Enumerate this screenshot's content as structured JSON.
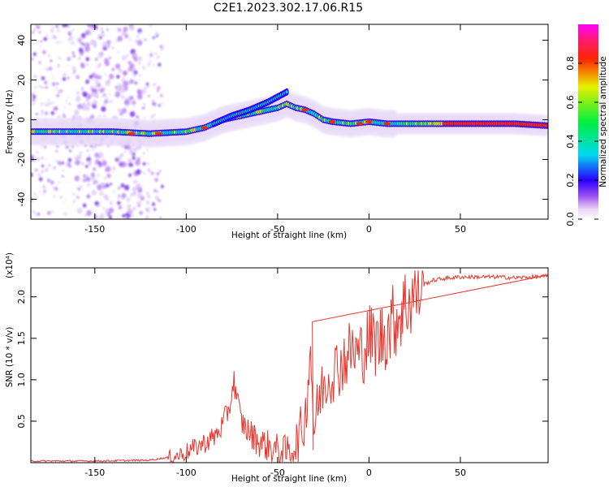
{
  "title": "C2E1.2023.302.17.06.R15",
  "chart_data": [
    {
      "type": "heatmap",
      "xlabel": "Height of straight line (km)",
      "ylabel": "Frequency (Hz)",
      "xlim": [
        -185,
        98
      ],
      "ylim": [
        -50,
        48
      ],
      "xticks": [
        -150,
        -100,
        -50,
        0,
        50
      ],
      "yticks": [
        -40,
        -20,
        0,
        20,
        40
      ],
      "colorbar": {
        "label": "Normalized spectral amplitude",
        "range": [
          0,
          1
        ],
        "ticks": [
          0.0,
          0.2,
          0.4,
          0.6,
          0.8
        ]
      },
      "ridge": {
        "description": "strong narrow-band signal",
        "x": [
          -185,
          -160,
          -140,
          -120,
          -100,
          -90,
          -80,
          -70,
          -60,
          -50,
          -45,
          -40,
          -35,
          -30,
          -25,
          -20,
          -10,
          0,
          10,
          20,
          40,
          60,
          80,
          98
        ],
        "freq_hz": [
          -6,
          -6,
          -6,
          -7,
          -6,
          -4,
          0,
          2,
          4,
          6,
          8,
          6,
          5,
          3,
          0,
          -1,
          -2,
          -1,
          -2,
          -2,
          -2,
          -2,
          -2,
          -3
        ],
        "upper_branch_x": [
          -85,
          -75,
          -65,
          -55,
          -45
        ],
        "upper_branch_freq_hz": [
          -2,
          2,
          5,
          9,
          14
        ]
      }
    },
    {
      "type": "line",
      "xlabel": "Height of straight line (km)",
      "ylabel": "SNR (10 * v/v)",
      "y_multiplier": "(x10⁴)",
      "xlim": [
        -185,
        98
      ],
      "ylim": [
        0,
        2.35
      ],
      "xticks": [
        -150,
        -100,
        -50,
        0,
        50
      ],
      "yticks": [
        0.5,
        1.0,
        1.5,
        2.0
      ],
      "series": [
        {
          "name": "SNR",
          "color": "#e8372e",
          "x": [
            -185,
            -150,
            -120,
            -105,
            -95,
            -85,
            -80,
            -76,
            -74,
            -70,
            -65,
            -60,
            -55,
            -50,
            -45,
            -40,
            -35,
            -32,
            -30,
            -28,
            -25,
            -20,
            -15,
            -10,
            -5,
            0,
            5,
            10,
            15,
            20,
            25,
            30,
            35,
            40,
            50,
            60,
            70,
            80,
            90,
            98
          ],
          "y": [
            0.02,
            0.02,
            0.03,
            0.08,
            0.18,
            0.3,
            0.45,
            0.7,
            1.0,
            0.5,
            0.35,
            0.25,
            0.2,
            0.15,
            0.12,
            0.2,
            0.5,
            1.4,
            0.35,
            0.7,
            0.95,
            1.1,
            1.2,
            1.35,
            1.3,
            1.5,
            1.45,
            1.6,
            1.75,
            1.9,
            2.05,
            2.15,
            2.2,
            2.22,
            2.24,
            2.24,
            2.24,
            2.23,
            2.24,
            2.25
          ]
        }
      ]
    }
  ]
}
